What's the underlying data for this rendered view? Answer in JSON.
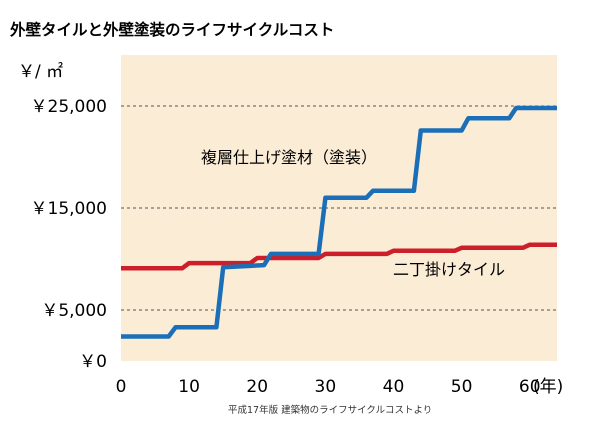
{
  "chart_data": {
    "type": "line",
    "title": "外壁タイルと外壁塗装のライフサイクルコスト",
    "ylabel": "￥/ ㎡",
    "xlabel": "(年)",
    "source": "平成17年版 建築物のライフサイクルコストより",
    "xlim": [
      0,
      64
    ],
    "ylim": [
      0,
      30000
    ],
    "x_ticks": [
      "0",
      "10",
      "20",
      "30",
      "40",
      "50",
      "60"
    ],
    "x_tick_values": [
      0,
      10,
      20,
      30,
      40,
      50,
      60
    ],
    "y_ticks": [
      "￥0",
      "￥5,000",
      "￥15,000",
      "￥25,000"
    ],
    "y_tick_values": [
      0,
      5000,
      15000,
      25000
    ],
    "grid": "dashed horizontal at 5,000 / 15,000 / 25,000",
    "background": "#fbecd6",
    "series": [
      {
        "name": "複層仕上げ塗材（塗装）",
        "color": "#1b6fb8",
        "x": [
          0,
          7,
          8,
          14,
          15,
          21,
          22,
          29,
          30,
          36,
          37,
          43,
          44,
          50,
          51,
          57,
          58,
          64
        ],
        "y": [
          2400,
          2400,
          3300,
          3300,
          9200,
          9400,
          10500,
          10500,
          16000,
          16000,
          16700,
          16700,
          22600,
          22600,
          23800,
          23800,
          24800,
          24800
        ]
      },
      {
        "name": "二丁掛けタイル",
        "color": "#cc1f2a",
        "x": [
          0,
          9,
          10,
          19,
          20,
          29,
          30,
          39,
          40,
          49,
          50,
          59,
          60,
          64
        ],
        "y": [
          9100,
          9100,
          9600,
          9600,
          10100,
          10100,
          10500,
          10500,
          10800,
          10800,
          11100,
          11100,
          11400,
          11400
        ]
      }
    ]
  }
}
